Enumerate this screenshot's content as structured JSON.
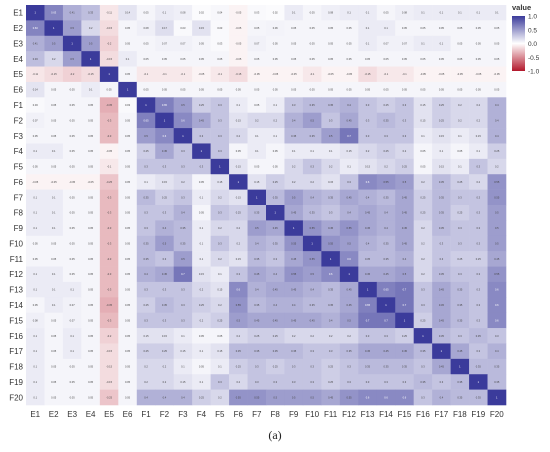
{
  "caption": "(a)",
  "chart_data": {
    "type": "heatmap",
    "title": "",
    "xlabel": "",
    "ylabel": "",
    "variables": [
      "E1",
      "E2",
      "E3",
      "E4",
      "E5",
      "E6",
      "F1",
      "F2",
      "F3",
      "F4",
      "F5",
      "F6",
      "F7",
      "F8",
      "F9",
      "F10",
      "F11",
      "F12",
      "F13",
      "F14",
      "F15",
      "F16",
      "F17",
      "F18",
      "F19",
      "F20"
    ],
    "values": [
      [
        1,
        0.63,
        0.41,
        0.33,
        -0.11,
        0.14,
        0.05,
        0.1,
        0.08,
        0.02,
        0.04,
        -0.05,
        0.03,
        0.02,
        0.1,
        0.05,
        0.08,
        0.1,
        0.1,
        0.05,
        0.08,
        0.1,
        0.1,
        0.1,
        0.1,
        0.1
      ],
      [
        0.63,
        1,
        0.5,
        0.2,
        -0.15,
        0.05,
        0.08,
        0.17,
        0.03,
        0.15,
        0.03,
        -0.05,
        0.05,
        0.06,
        0.05,
        0.05,
        0.05,
        0.05,
        0.1,
        0.1,
        0.05,
        0.05,
        0.05,
        0.05,
        0.05,
        0.05
      ],
      [
        0.41,
        0.5,
        1,
        0.5,
        -0.2,
        0.05,
        0.05,
        0.07,
        0.07,
        0.05,
        0.03,
        -0.05,
        0.07,
        0.05,
        0.05,
        0.05,
        0.05,
        0.05,
        0.1,
        0.07,
        0.07,
        0.1,
        0.1,
        0.05,
        0.05,
        0.05
      ],
      [
        0.33,
        0.2,
        0.5,
        1,
        -0.15,
        0.1,
        0.05,
        0.05,
        0.05,
        0.05,
        0.05,
        -0.05,
        0.05,
        0.05,
        0.05,
        0.05,
        0.05,
        0.05,
        0.05,
        0.05,
        0.05,
        0.05,
        0.05,
        0.05,
        0.05,
        0.05
      ],
      [
        -0.11,
        -0.15,
        -0.2,
        -0.15,
        1,
        0.05,
        -0.1,
        -0.1,
        -0.1,
        -0.05,
        -0.1,
        -0.15,
        -0.05,
        -0.05,
        -0.05,
        -0.1,
        -0.05,
        -0.05,
        -0.15,
        -0.1,
        -0.1,
        -0.05,
        -0.05,
        -0.05,
        -0.05,
        -0.05
      ],
      [
        0.14,
        0.05,
        0.05,
        0.1,
        0.05,
        1,
        0.05,
        0.05,
        0.05,
        0.05,
        0.05,
        0.05,
        0.05,
        0.05,
        0.05,
        0.05,
        0.05,
        0.05,
        0.05,
        0.05,
        0.05,
        0.05,
        0.05,
        0.05,
        0.05,
        0.05
      ],
      [
        0.03,
        0.05,
        0.05,
        0.05,
        -0.35,
        0.03,
        1,
        0.65,
        0.5,
        0.25,
        0.3,
        0.1,
        0.05,
        0.1,
        0.3,
        0.35,
        0.35,
        0.4,
        0.3,
        0.25,
        0.3,
        0.15,
        0.25,
        0.2,
        0.2,
        0.4
      ],
      [
        0.07,
        0.05,
        0.05,
        0.05,
        -0.3,
        0.05,
        0.65,
        1,
        0.6,
        0.45,
        0.3,
        0.15,
        0.2,
        0.2,
        0.4,
        0.5,
        0.3,
        0.45,
        0.3,
        0.35,
        0.3,
        0.15,
        0.25,
        0.2,
        0.2,
        0.4
      ],
      [
        0.05,
        0.05,
        0.05,
        0.05,
        -0.3,
        0.05,
        0.5,
        0.6,
        1,
        0.3,
        0.3,
        0.2,
        0.1,
        0.1,
        0.35,
        0.35,
        0.5,
        0.7,
        0.3,
        0.3,
        0.3,
        0.1,
        0.15,
        0.1,
        0.15,
        0.4
      ],
      [
        0.1,
        0.1,
        0.05,
        0.05,
        -0.05,
        0.05,
        0.25,
        0.45,
        0.3,
        1,
        0.3,
        0.05,
        0.1,
        0.05,
        0.1,
        0.1,
        0.1,
        0.15,
        0.2,
        0.25,
        0.2,
        0.05,
        0.1,
        0.05,
        0.1,
        0.25
      ],
      [
        0.05,
        0.05,
        0.05,
        0.05,
        -0.1,
        0.05,
        0.3,
        0.3,
        0.3,
        0.3,
        1,
        0.15,
        0.05,
        0.05,
        0.2,
        0.3,
        0.2,
        0.1,
        0.15,
        0.2,
        0.25,
        0.05,
        0.15,
        0.1,
        0.3,
        0.2
      ],
      [
        -0.05,
        -0.05,
        -0.05,
        -0.05,
        -0.25,
        0.05,
        0.1,
        0.15,
        0.2,
        0.05,
        0.15,
        1,
        0.15,
        0.25,
        0.2,
        0.2,
        0.15,
        0.3,
        0.6,
        0.55,
        0.5,
        0.2,
        0.35,
        0.25,
        0.2,
        0.55
      ],
      [
        0.1,
        0.1,
        0.05,
        0.05,
        -0.3,
        0.05,
        0.35,
        0.25,
        0.3,
        0.1,
        0.2,
        0.15,
        1,
        0.35,
        0.5,
        0.4,
        0.35,
        0.45,
        0.4,
        0.35,
        0.45,
        0.25,
        0.35,
        0.3,
        0.3,
        0.55
      ],
      [
        0.1,
        0.1,
        0.05,
        0.05,
        -0.3,
        0.05,
        0.3,
        0.3,
        0.4,
        0.05,
        0.3,
        0.25,
        0.35,
        1,
        0.45,
        0.35,
        0.3,
        0.4,
        0.45,
        0.4,
        0.45,
        0.25,
        0.35,
        0.25,
        0.3,
        0.5
      ],
      [
        0.1,
        0.1,
        0.05,
        0.05,
        -0.3,
        0.05,
        0.3,
        0.4,
        0.35,
        0.1,
        0.2,
        0.2,
        0.5,
        0.45,
        1,
        0.55,
        0.45,
        0.55,
        0.45,
        0.4,
        0.45,
        0.2,
        0.35,
        0.3,
        0.3,
        0.5
      ],
      [
        0.05,
        0.05,
        0.05,
        0.05,
        -0.3,
        0.05,
        0.35,
        0.5,
        0.35,
        0.1,
        0.3,
        0.2,
        0.4,
        0.35,
        0.55,
        1,
        0.55,
        0.5,
        0.4,
        0.35,
        0.45,
        0.2,
        0.3,
        0.3,
        0.3,
        0.5
      ],
      [
        0.05,
        0.05,
        0.05,
        0.05,
        -0.3,
        0.05,
        0.35,
        0.3,
        0.5,
        0.1,
        0.2,
        0.15,
        0.35,
        0.3,
        0.45,
        0.55,
        1,
        0.6,
        0.35,
        0.35,
        0.4,
        0.2,
        0.3,
        0.25,
        0.25,
        0.45
      ],
      [
        0.1,
        0.1,
        0.05,
        0.05,
        -0.3,
        0.05,
        0.4,
        0.45,
        0.7,
        0.15,
        0.1,
        0.3,
        0.45,
        0.4,
        0.55,
        0.5,
        0.6,
        1,
        0.45,
        0.45,
        0.5,
        0.2,
        0.35,
        0.3,
        0.3,
        0.55
      ],
      [
        0.1,
        0.1,
        0.1,
        0.05,
        -0.3,
        0.05,
        0.3,
        0.3,
        0.3,
        0.2,
        0.15,
        0.6,
        0.4,
        0.45,
        0.45,
        0.4,
        0.35,
        0.45,
        1,
        0.65,
        0.7,
        0.3,
        0.45,
        0.35,
        0.3,
        0.6
      ],
      [
        0.05,
        0.1,
        0.07,
        0.05,
        -0.35,
        0.05,
        0.25,
        0.35,
        0.3,
        0.25,
        0.2,
        0.55,
        0.35,
        0.4,
        0.4,
        0.35,
        0.35,
        0.45,
        0.65,
        1,
        0.7,
        0.3,
        0.45,
        0.35,
        0.3,
        0.6
      ],
      [
        0.08,
        0.05,
        0.07,
        0.05,
        -0.3,
        0.05,
        0.3,
        0.3,
        0.3,
        0.2,
        0.25,
        0.5,
        0.45,
        0.45,
        0.45,
        0.45,
        0.4,
        0.5,
        0.7,
        0.7,
        1,
        0.25,
        0.45,
        0.35,
        0.3,
        0.6
      ],
      [
        0.1,
        0.05,
        0.1,
        0.05,
        -0.2,
        0.05,
        0.15,
        0.15,
        0.1,
        0.05,
        0.05,
        0.2,
        0.25,
        0.25,
        0.2,
        0.2,
        0.2,
        0.2,
        0.3,
        0.3,
        0.25,
        1,
        0.35,
        0.3,
        0.35,
        0.3
      ],
      [
        0.1,
        0.05,
        0.1,
        0.05,
        -0.15,
        0.05,
        0.25,
        0.25,
        0.15,
        0.1,
        0.15,
        0.35,
        0.35,
        0.35,
        0.35,
        0.3,
        0.3,
        0.35,
        0.45,
        0.45,
        0.45,
        0.35,
        1,
        0.45,
        0.3,
        0.4
      ],
      [
        0.1,
        0.05,
        0.05,
        0.05,
        -0.15,
        0.05,
        0.2,
        0.2,
        0.1,
        0.05,
        0.1,
        0.25,
        0.3,
        0.25,
        0.3,
        0.3,
        0.25,
        0.3,
        0.35,
        0.35,
        0.35,
        0.3,
        0.45,
        1,
        0.35,
        0.35
      ],
      [
        0.1,
        0.05,
        0.05,
        0.05,
        -0.15,
        0.05,
        0.2,
        0.2,
        0.15,
        0.1,
        0.3,
        0.2,
        0.3,
        0.3,
        0.3,
        0.3,
        0.25,
        0.3,
        0.3,
        0.3,
        0.3,
        0.35,
        0.3,
        0.35,
        1,
        0.35
      ],
      [
        0.1,
        0.05,
        0.05,
        0.05,
        -0.25,
        0.05,
        0.4,
        0.4,
        0.4,
        0.25,
        0.2,
        0.55,
        0.55,
        0.5,
        0.5,
        0.5,
        0.45,
        0.55,
        0.6,
        0.6,
        0.6,
        0.3,
        0.4,
        0.35,
        0.35,
        1
      ]
    ],
    "color_scale": {
      "low": "#b2182b",
      "mid": "#ffffff",
      "high": "#3b3b9b",
      "domain": [
        -1,
        1
      ]
    },
    "legend": {
      "title": "value",
      "placement": "right",
      "ticks": [
        "1.0",
        "0.5",
        "0.0",
        "-0.5",
        "-1.0"
      ]
    },
    "grid": false
  }
}
